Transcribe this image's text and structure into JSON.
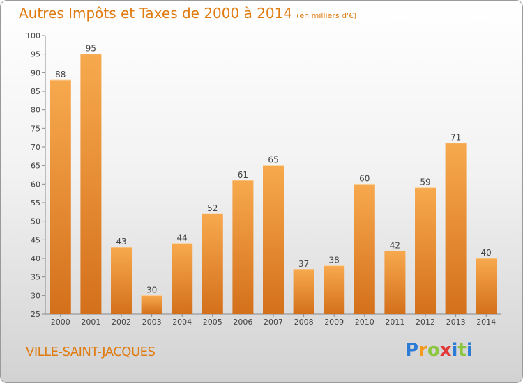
{
  "header": {
    "title": "Autres Impôts et Taxes de 2000 à 2014",
    "subtitle": "(en milliers d'€)"
  },
  "footer": {
    "commune": "VILLE-SAINT-JACQUES",
    "logo_text": "Proxiti"
  },
  "colors": {
    "bar_top": "#f7a94e",
    "bar_bottom": "#d4701b",
    "accent": "#e07b10"
  },
  "chart_data": {
    "type": "bar",
    "title": "Autres Impôts et Taxes de 2000 à 2014",
    "xlabel": "",
    "ylabel": "",
    "categories": [
      "2000",
      "2001",
      "2002",
      "2003",
      "2004",
      "2005",
      "2006",
      "2007",
      "2008",
      "2009",
      "2010",
      "2011",
      "2012",
      "2013",
      "2014"
    ],
    "values": [
      88,
      95,
      43,
      30,
      44,
      52,
      61,
      65,
      37,
      38,
      60,
      42,
      59,
      71,
      40
    ],
    "ylim": [
      25,
      100
    ],
    "yticks": [
      25,
      30,
      35,
      40,
      45,
      50,
      55,
      60,
      65,
      70,
      75,
      80,
      85,
      90,
      95,
      100
    ],
    "grid": false,
    "legend": "none"
  }
}
